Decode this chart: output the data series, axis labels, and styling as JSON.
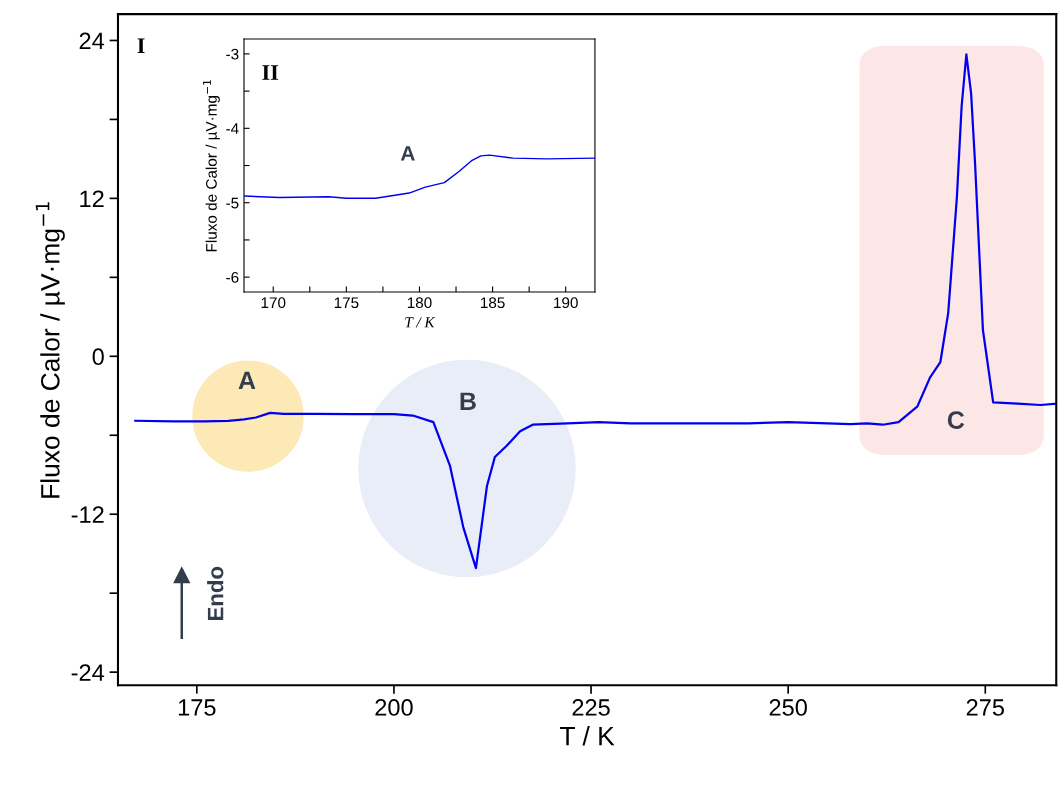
{
  "chart_data": [
    {
      "type": "line",
      "xlabel": "T / K",
      "ylabel": "Fluxo de Calor / µV·mg$^{−1}$",
      "series": [
        {
          "color": "#0000ee",
          "x": [
            167.2,
            172,
            176,
            179,
            181,
            182.5,
            184.3,
            186,
            190,
            195,
            200,
            202.4,
            205,
            207.1,
            208.8,
            210.4,
            211.8,
            212.8,
            214.3,
            216.0,
            217.6,
            222,
            226,
            230,
            235,
            240,
            245,
            250,
            255,
            257.9,
            260,
            262,
            264.0,
            266.4,
            268.0,
            269.3,
            270.3,
            271.4,
            272.0,
            272.6,
            273.2,
            273.7,
            274.7,
            276.0,
            279.1,
            282,
            284
          ],
          "values": [
            -4.9,
            -4.95,
            -4.95,
            -4.9,
            -4.8,
            -4.65,
            -4.3,
            -4.37,
            -4.37,
            -4.4,
            -4.4,
            -4.5,
            -5.0,
            -8.3,
            -13.0,
            -16.1,
            -9.85,
            -7.65,
            -6.8,
            -5.7,
            -5.2,
            -5.1,
            -5.0,
            -5.1,
            -5.1,
            -5.1,
            -5.1,
            -5.0,
            -5.1,
            -5.15,
            -5.1,
            -5.2,
            -5.0,
            -3.8,
            -1.6,
            -0.45,
            3.3,
            12.1,
            19.0,
            22.95,
            20.0,
            14.7,
            2.0,
            -3.5,
            -3.6,
            -3.7,
            -3.6
          ]
        }
      ],
      "xlim": [
        165,
        284
      ],
      "ylim": [
        -25,
        26
      ],
      "xticks": [
        175,
        200,
        225,
        250,
        275
      ],
      "yticks": [
        -24,
        {
          "value": -18,
          "label": null
        },
        -12,
        {
          "value": -6,
          "label": null
        },
        0,
        {
          "value": 6,
          "label": null
        },
        12,
        {
          "value": 18,
          "label": null
        },
        24
      ],
      "annotations": [
        "I",
        "A",
        "B",
        "C",
        "Endo"
      ],
      "grid": false,
      "legend": false
    },
    {
      "type": "line",
      "xlabel": "T / K",
      "ylabel": "Fluxo de Calor / µV·mg$^{−1}$",
      "series": [
        {
          "color": "#0000ee",
          "x": [
            168,
            170.4,
            173.8,
            175,
            177,
            179.3,
            180.4,
            181.7,
            182.7,
            183.6,
            184.2,
            184.8,
            186.4,
            188.7,
            192
          ],
          "values": [
            -4.91,
            -4.93,
            -4.92,
            -4.94,
            -4.94,
            -4.87,
            -4.79,
            -4.73,
            -4.58,
            -4.43,
            -4.37,
            -4.36,
            -4.4,
            -4.41,
            -4.4
          ]
        }
      ],
      "xlim": [
        168,
        192
      ],
      "ylim": [
        -6.2,
        -2.8
      ],
      "xticks": [
        170,
        {
          "value": 172.5,
          "label": null
        },
        175,
        {
          "value": 177.5,
          "label": null
        },
        180,
        {
          "value": 182.5,
          "label": null
        },
        185,
        {
          "value": 187.5,
          "label": null
        },
        190
      ],
      "yticks": [
        -6,
        {
          "value": -5.5,
          "label": null
        },
        -5,
        {
          "value": -4.5,
          "label": null
        },
        -4,
        {
          "value": -3.5,
          "label": null
        },
        -3
      ],
      "annotations": [
        "II",
        "A"
      ],
      "grid": false,
      "legend": false
    }
  ]
}
